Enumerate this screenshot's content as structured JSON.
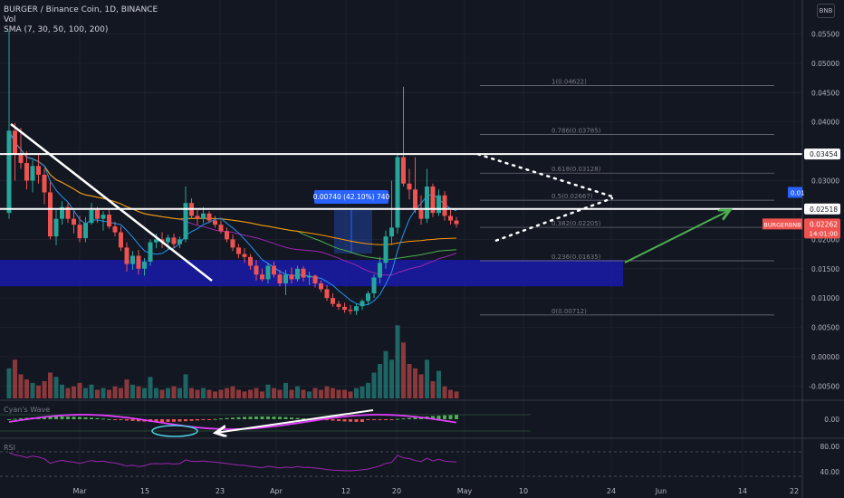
{
  "header": {
    "symbol_line": "BURGER / Binance Coin, 1D, BINANCE",
    "vol_label": "Vol",
    "sma_label": "SMA (7, 30, 50, 100, 200)",
    "corner_button": "BNB"
  },
  "chart_data": {
    "type": "candlestick",
    "price_axis_ticks": [
      "0.05500",
      "0.05000",
      "0.04500",
      "0.04000",
      "0.03500",
      "0.03000",
      "0.02500",
      "0.02000",
      "0.01500",
      "0.01000",
      "0.00500",
      "0.00000",
      "-0.00500"
    ],
    "date_axis_ticks": [
      "Mar",
      "15",
      "23",
      "Apr",
      "12",
      "20",
      "May",
      "10",
      "24",
      "Jun",
      "14",
      "22"
    ],
    "horizontal_levels": [
      {
        "label": "0.03454",
        "price": 0.03454
      },
      {
        "label": "0.02518",
        "price": 0.02518
      }
    ],
    "fibonacci": [
      {
        "label": "1(0.04622)",
        "price": 0.04622
      },
      {
        "label": "0.786(0.03785)",
        "price": 0.03785
      },
      {
        "label": "0.618(0.03128)",
        "price": 0.03128
      },
      {
        "label": "0.5(0.02667)",
        "price": 0.02667
      },
      {
        "label": "0.382(0.02205)",
        "price": 0.02205
      },
      {
        "label": "0.236(0.01635)",
        "price": 0.01635
      },
      {
        "label": "0(0.00712)",
        "price": 0.00712
      }
    ],
    "measure_label": "0.00740 (42.10%) 740",
    "current_price": {
      "symbol": "BURGERBNB",
      "price": "0.02262",
      "countdown": "14:01:00",
      "value": 0.02262
    },
    "hidden_label": "0.01",
    "wave_panel": {
      "label": "Cyan's Wave",
      "tick": "0.00"
    },
    "rsi_panel": {
      "label": "RSI",
      "ticks": [
        "80.00",
        "40.00"
      ]
    },
    "candles": [
      {
        "o": 0.0245,
        "h": 0.0555,
        "l": 0.0235,
        "c": 0.0385
      },
      {
        "o": 0.0385,
        "h": 0.0398,
        "l": 0.03,
        "c": 0.0345
      },
      {
        "o": 0.0345,
        "h": 0.039,
        "l": 0.032,
        "c": 0.033
      },
      {
        "o": 0.033,
        "h": 0.035,
        "l": 0.0285,
        "c": 0.03
      },
      {
        "o": 0.03,
        "h": 0.0335,
        "l": 0.028,
        "c": 0.0325
      },
      {
        "o": 0.0325,
        "h": 0.0345,
        "l": 0.0295,
        "c": 0.031
      },
      {
        "o": 0.031,
        "h": 0.032,
        "l": 0.026,
        "c": 0.028
      },
      {
        "o": 0.028,
        "h": 0.0298,
        "l": 0.02,
        "c": 0.0205
      },
      {
        "o": 0.0205,
        "h": 0.025,
        "l": 0.019,
        "c": 0.0235
      },
      {
        "o": 0.0235,
        "h": 0.0265,
        "l": 0.0225,
        "c": 0.0255
      },
      {
        "o": 0.0255,
        "h": 0.0262,
        "l": 0.0228,
        "c": 0.0235
      },
      {
        "o": 0.0235,
        "h": 0.0248,
        "l": 0.021,
        "c": 0.0225
      },
      {
        "o": 0.0225,
        "h": 0.024,
        "l": 0.0195,
        "c": 0.0202
      },
      {
        "o": 0.0202,
        "h": 0.0238,
        "l": 0.0195,
        "c": 0.0228
      },
      {
        "o": 0.0228,
        "h": 0.0262,
        "l": 0.0225,
        "c": 0.025
      },
      {
        "o": 0.025,
        "h": 0.0255,
        "l": 0.0228,
        "c": 0.0235
      },
      {
        "o": 0.0235,
        "h": 0.0248,
        "l": 0.0215,
        "c": 0.0242
      },
      {
        "o": 0.0242,
        "h": 0.0252,
        "l": 0.0218,
        "c": 0.0222
      },
      {
        "o": 0.0222,
        "h": 0.023,
        "l": 0.0205,
        "c": 0.0212
      },
      {
        "o": 0.0212,
        "h": 0.0222,
        "l": 0.018,
        "c": 0.0186
      },
      {
        "o": 0.0186,
        "h": 0.0195,
        "l": 0.0145,
        "c": 0.0158
      },
      {
        "o": 0.0158,
        "h": 0.018,
        "l": 0.0148,
        "c": 0.0172
      },
      {
        "o": 0.0172,
        "h": 0.0182,
        "l": 0.014,
        "c": 0.015
      },
      {
        "o": 0.015,
        "h": 0.0168,
        "l": 0.0138,
        "c": 0.0162
      },
      {
        "o": 0.0162,
        "h": 0.02,
        "l": 0.0155,
        "c": 0.0195
      },
      {
        "o": 0.0195,
        "h": 0.021,
        "l": 0.0185,
        "c": 0.02
      },
      {
        "o": 0.02,
        "h": 0.0212,
        "l": 0.0185,
        "c": 0.0195
      },
      {
        "o": 0.0195,
        "h": 0.0208,
        "l": 0.0182,
        "c": 0.0203
      },
      {
        "o": 0.0203,
        "h": 0.021,
        "l": 0.0185,
        "c": 0.0192
      },
      {
        "o": 0.0192,
        "h": 0.0205,
        "l": 0.0185,
        "c": 0.02
      },
      {
        "o": 0.02,
        "h": 0.029,
        "l": 0.0195,
        "c": 0.0262
      },
      {
        "o": 0.0262,
        "h": 0.027,
        "l": 0.0235,
        "c": 0.024
      },
      {
        "o": 0.024,
        "h": 0.025,
        "l": 0.0225,
        "c": 0.0235
      },
      {
        "o": 0.0235,
        "h": 0.0255,
        "l": 0.0228,
        "c": 0.0244
      },
      {
        "o": 0.0244,
        "h": 0.0248,
        "l": 0.0228,
        "c": 0.0232
      },
      {
        "o": 0.0232,
        "h": 0.024,
        "l": 0.022,
        "c": 0.0225
      },
      {
        "o": 0.0225,
        "h": 0.0232,
        "l": 0.021,
        "c": 0.0214
      },
      {
        "o": 0.0214,
        "h": 0.022,
        "l": 0.0195,
        "c": 0.02
      },
      {
        "o": 0.02,
        "h": 0.0208,
        "l": 0.018,
        "c": 0.0186
      },
      {
        "o": 0.0186,
        "h": 0.0192,
        "l": 0.0168,
        "c": 0.0175
      },
      {
        "o": 0.0175,
        "h": 0.0185,
        "l": 0.016,
        "c": 0.017
      },
      {
        "o": 0.017,
        "h": 0.0175,
        "l": 0.0148,
        "c": 0.0155
      },
      {
        "o": 0.0155,
        "h": 0.0165,
        "l": 0.013,
        "c": 0.014
      },
      {
        "o": 0.014,
        "h": 0.015,
        "l": 0.0128,
        "c": 0.0132
      },
      {
        "o": 0.0132,
        "h": 0.016,
        "l": 0.0125,
        "c": 0.0155
      },
      {
        "o": 0.0155,
        "h": 0.0162,
        "l": 0.0135,
        "c": 0.014
      },
      {
        "o": 0.014,
        "h": 0.0148,
        "l": 0.012,
        "c": 0.0125
      },
      {
        "o": 0.0125,
        "h": 0.0148,
        "l": 0.0105,
        "c": 0.014
      },
      {
        "o": 0.014,
        "h": 0.0152,
        "l": 0.0125,
        "c": 0.0132
      },
      {
        "o": 0.0132,
        "h": 0.0155,
        "l": 0.0128,
        "c": 0.015
      },
      {
        "o": 0.015,
        "h": 0.0154,
        "l": 0.0128,
        "c": 0.0135
      },
      {
        "o": 0.0135,
        "h": 0.0145,
        "l": 0.0122,
        "c": 0.0138
      },
      {
        "o": 0.0138,
        "h": 0.014,
        "l": 0.0118,
        "c": 0.0125
      },
      {
        "o": 0.0125,
        "h": 0.013,
        "l": 0.011,
        "c": 0.0115
      },
      {
        "o": 0.0115,
        "h": 0.0122,
        "l": 0.0095,
        "c": 0.01
      },
      {
        "o": 0.01,
        "h": 0.0108,
        "l": 0.0085,
        "c": 0.009
      },
      {
        "o": 0.009,
        "h": 0.0095,
        "l": 0.008,
        "c": 0.0085
      },
      {
        "o": 0.0085,
        "h": 0.0092,
        "l": 0.0075,
        "c": 0.008
      },
      {
        "o": 0.008,
        "h": 0.0088,
        "l": 0.0072,
        "c": 0.0078
      },
      {
        "o": 0.0078,
        "h": 0.009,
        "l": 0.0071,
        "c": 0.0086
      },
      {
        "o": 0.0086,
        "h": 0.0098,
        "l": 0.008,
        "c": 0.0095
      },
      {
        "o": 0.0095,
        "h": 0.0112,
        "l": 0.0088,
        "c": 0.0108
      },
      {
        "o": 0.0108,
        "h": 0.014,
        "l": 0.01,
        "c": 0.0135
      },
      {
        "o": 0.0135,
        "h": 0.017,
        "l": 0.0125,
        "c": 0.016
      },
      {
        "o": 0.016,
        "h": 0.0215,
        "l": 0.015,
        "c": 0.0205
      },
      {
        "o": 0.0205,
        "h": 0.03,
        "l": 0.019,
        "c": 0.022
      },
      {
        "o": 0.022,
        "h": 0.0345,
        "l": 0.021,
        "c": 0.034
      },
      {
        "o": 0.034,
        "h": 0.046,
        "l": 0.029,
        "c": 0.0295
      },
      {
        "o": 0.0295,
        "h": 0.032,
        "l": 0.0268,
        "c": 0.0285
      },
      {
        "o": 0.0285,
        "h": 0.034,
        "l": 0.0245,
        "c": 0.025
      },
      {
        "o": 0.025,
        "h": 0.0275,
        "l": 0.0225,
        "c": 0.0235
      },
      {
        "o": 0.0235,
        "h": 0.032,
        "l": 0.0228,
        "c": 0.029
      },
      {
        "o": 0.029,
        "h": 0.0295,
        "l": 0.0238,
        "c": 0.0245
      },
      {
        "o": 0.0245,
        "h": 0.0285,
        "l": 0.024,
        "c": 0.0275
      },
      {
        "o": 0.0275,
        "h": 0.0282,
        "l": 0.0232,
        "c": 0.024
      },
      {
        "o": 0.024,
        "h": 0.025,
        "l": 0.0225,
        "c": 0.0232
      },
      {
        "o": 0.0232,
        "h": 0.0238,
        "l": 0.022,
        "c": 0.0226
      }
    ],
    "volume": [
      35,
      45,
      28,
      22,
      18,
      15,
      20,
      30,
      25,
      16,
      12,
      14,
      18,
      12,
      16,
      10,
      12,
      10,
      14,
      12,
      22,
      16,
      14,
      12,
      25,
      12,
      10,
      12,
      14,
      12,
      28,
      12,
      10,
      12,
      10,
      8,
      10,
      12,
      14,
      10,
      8,
      10,
      12,
      8,
      16,
      12,
      10,
      18,
      10,
      14,
      10,
      8,
      12,
      10,
      14,
      12,
      10,
      10,
      8,
      12,
      14,
      18,
      30,
      40,
      55,
      45,
      85,
      65,
      40,
      35,
      28,
      45,
      20,
      32,
      14,
      10,
      8
    ]
  }
}
